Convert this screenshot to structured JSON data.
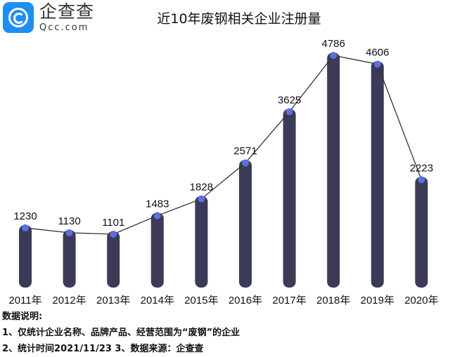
{
  "logo": {
    "cn": "企查查",
    "en": "Qcc.com"
  },
  "chart_data": {
    "type": "bar",
    "title": "近10年废钢相关企业注册量",
    "categories": [
      "2011年",
      "2012年",
      "2013年",
      "2014年",
      "2015年",
      "2016年",
      "2017年",
      "2018年",
      "2019年",
      "2020年"
    ],
    "values": [
      1230,
      1130,
      1101,
      1483,
      1828,
      2571,
      3625,
      4786,
      4606,
      2223
    ],
    "overlay": "line",
    "colors": {
      "bar": "#3b3a57",
      "line": "#333333",
      "point": "#5b6fe0"
    },
    "grid": false
  },
  "notes": {
    "heading": "数据说明:",
    "line1": "1、仅统计企业名称、品牌产品、经营范围为“废钢”的企业",
    "line2": "2、统计时间2021/11/23   3、数据来源：企查查"
  }
}
